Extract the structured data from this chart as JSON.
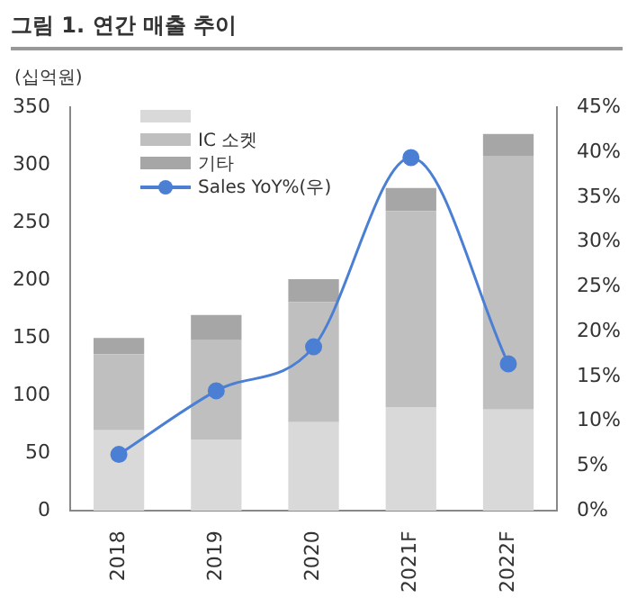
{
  "chart_data": {
    "type": "bar",
    "title": "그림 1. 연간 매출 추이",
    "ylabel": "(십억원)",
    "categories": [
      "2018",
      "2019",
      "2020",
      "2021F",
      "2022F"
    ],
    "stacked": true,
    "legend": "top left",
    "grid": false,
    "series": [
      {
        "color": "#d9d9d9",
        "values": [
          70,
          62,
          77,
          90,
          88
        ]
      },
      {
        "name": "IC 소켓",
        "color": "#bfbfbf",
        "values": [
          66,
          86,
          104,
          170,
          220
        ]
      },
      {
        "name": "기타",
        "color": "#a6a6a6",
        "values": [
          14,
          22,
          20,
          20,
          19
        ]
      },
      {
        "name": "Sales YoY%(우)",
        "type": "line",
        "axis": "y2",
        "marker": "circle",
        "line_style": "solid",
        "color": "#4a7fd4",
        "values": [
          6.3,
          13.4,
          18.3,
          39.4,
          16.4
        ]
      }
    ],
    "ylim": [
      0,
      350
    ],
    "yticks": [
      0,
      50,
      100,
      150,
      200,
      250,
      300,
      350
    ],
    "y2lim": [
      0,
      45
    ],
    "y2ticks": [
      {
        "value": 0,
        "label": "0%"
      },
      {
        "value": 5,
        "label": "5%"
      },
      {
        "value": 10,
        "label": "10%"
      },
      {
        "value": 15,
        "label": "15%"
      },
      {
        "value": 20,
        "label": "20%"
      },
      {
        "value": 25,
        "label": "25%"
      },
      {
        "value": 30,
        "label": "30%"
      },
      {
        "value": 35,
        "label": "35%"
      },
      {
        "value": 40,
        "label": "40%"
      },
      {
        "value": 45,
        "label": "45%"
      }
    ]
  }
}
